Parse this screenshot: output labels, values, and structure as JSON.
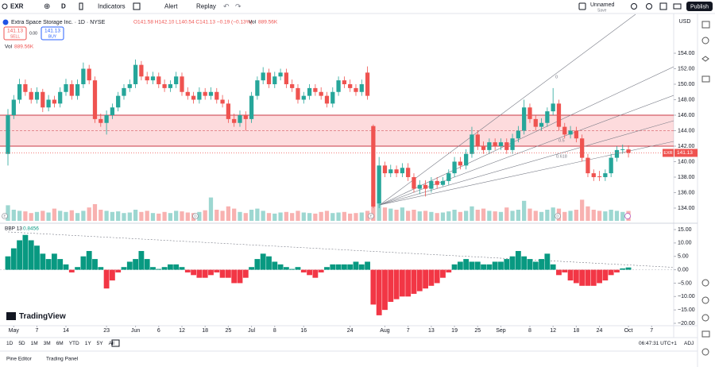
{
  "toolbar": {
    "symbol": "EXR",
    "interval": "D",
    "indicators": "Indicators",
    "alert": "Alert",
    "replay": "Replay",
    "layout_name": "Unnamed",
    "save": "Save",
    "publish": "Publish"
  },
  "legend": {
    "title": "Extra Space Storage Inc. · 1D · NYSE",
    "ohlc": "O141.58 H142.10 L140.54 C141.13 −0.19 (−0.13%)",
    "sell_price": "141.13",
    "sell": "SELL",
    "spread": "0.00",
    "buy_price": "141.13",
    "buy": "BUY"
  },
  "chart_data": {
    "type": "candlestick",
    "symbol_label": "EXR",
    "currency": "USD",
    "up_color": "#26a69a",
    "down_color": "#ef5350",
    "xlim": [
      -1.37,
      114.8
    ],
    "ylim": [
      132.15,
      159.03
    ],
    "yticks": [
      {
        "value": 154,
        "label": "154.00"
      },
      {
        "value": 152,
        "label": "152.00"
      },
      {
        "value": 150,
        "label": "150.00"
      },
      {
        "value": 148,
        "label": "148.00"
      },
      {
        "value": 146,
        "label": "146.00"
      },
      {
        "value": 144,
        "label": "144.00"
      },
      {
        "value": 142,
        "label": "142.00"
      },
      {
        "value": 140,
        "label": "140.00"
      },
      {
        "value": 138,
        "label": "138.00"
      },
      {
        "value": 136,
        "label": "136.00"
      },
      {
        "value": 134,
        "label": "134.00"
      }
    ],
    "xticks": [
      {
        "value": 1,
        "label": "May"
      },
      {
        "value": 5,
        "label": "7"
      },
      {
        "value": 10,
        "label": "14"
      },
      {
        "value": 17,
        "label": "23"
      },
      {
        "value": 22,
        "label": "Jun"
      },
      {
        "value": 26,
        "label": "6"
      },
      {
        "value": 30,
        "label": "12"
      },
      {
        "value": 34,
        "label": "18"
      },
      {
        "value": 38,
        "label": "25"
      },
      {
        "value": 42,
        "label": "Jul"
      },
      {
        "value": 46,
        "label": "8"
      },
      {
        "value": 51,
        "label": "16"
      },
      {
        "value": 59,
        "label": "24"
      },
      {
        "value": 65,
        "label": "Aug"
      },
      {
        "value": 69,
        "label": "7"
      },
      {
        "value": 73,
        "label": "13"
      },
      {
        "value": 77,
        "label": "19"
      },
      {
        "value": 81,
        "label": "25"
      },
      {
        "value": 85,
        "label": "Sep"
      },
      {
        "value": 90,
        "label": "8"
      },
      {
        "value": 94,
        "label": "12"
      },
      {
        "value": 98,
        "label": "18"
      },
      {
        "value": 102,
        "label": "24"
      },
      {
        "value": 107,
        "label": "Oct"
      },
      {
        "value": 111,
        "label": "7"
      }
    ],
    "open": [
      141,
      146,
      148,
      150,
      149,
      148,
      149,
      147,
      148,
      147.5,
      149,
      150,
      148.5,
      150,
      152,
      150.5,
      145.5,
      145,
      146,
      147,
      148.5,
      149.5,
      150,
      152.5,
      151,
      150.5,
      151,
      150,
      149.5,
      150,
      151,
      149,
      148.5,
      148,
      149,
      148.5,
      149,
      148,
      147.5,
      145.5,
      145,
      146,
      145.5,
      148.5,
      150.5,
      151.5,
      150,
      151,
      151.5,
      150,
      149.5,
      148,
      148.5,
      149.5,
      149,
      148.5,
      147.5,
      149,
      150.5,
      150,
      149.5,
      149,
      151.5,
      144.6,
      134.6,
      139.5,
      138.5,
      139,
      138.5,
      139.2,
      138,
      136.5,
      137,
      136.5,
      137.5,
      137,
      137.5,
      138.5,
      140,
      139.5,
      141,
      143.5,
      142,
      141.5,
      142.5,
      142,
      142.5,
      141.5,
      143,
      144,
      147,
      145.5,
      144.5,
      145,
      146.5,
      147.5,
      144.5,
      143.5,
      144,
      143,
      140.5,
      138.5,
      138.1,
      138,
      138.5,
      140.5,
      141.5,
      141.58
    ],
    "high": [
      146.8,
      148.6,
      150.7,
      150.6,
      149.5,
      149.6,
      149.4,
      148.6,
      148.5,
      149.6,
      150.7,
      150.5,
      150.6,
      152.8,
      152.5,
      151,
      146.2,
      146.6,
      147.5,
      149,
      150,
      150.6,
      153.2,
      153,
      151.6,
      151.6,
      151.5,
      150.6,
      150.5,
      151.6,
      151.5,
      149.6,
      149,
      149.6,
      149.5,
      149.6,
      149.5,
      148.6,
      148,
      146.2,
      146.6,
      146.5,
      149,
      151,
      152.2,
      152,
      151.6,
      152,
      152,
      150.6,
      150,
      149,
      150,
      150,
      149.6,
      149,
      149.6,
      151,
      151,
      150.6,
      150,
      150.6,
      152.3,
      144.8,
      140.6,
      140,
      139.6,
      139.5,
      139.8,
      139.8,
      138.5,
      137.6,
      137.6,
      138,
      138,
      138,
      139,
      140.6,
      140.6,
      141.6,
      144.5,
      144,
      142.6,
      143,
      143,
      143,
      143,
      143.6,
      144.6,
      148,
      147.5,
      146,
      145.6,
      147,
      149.5,
      148,
      145,
      144.6,
      144.5,
      143.5,
      141,
      139,
      138.8,
      139,
      141,
      142,
      142.2,
      142.1
    ],
    "low": [
      139.5,
      145.5,
      147.5,
      148.5,
      147.5,
      147.5,
      146.4,
      146.5,
      147,
      147,
      148.5,
      148,
      148,
      149.5,
      150,
      145,
      144.5,
      143.5,
      145.5,
      146.5,
      148,
      149,
      149.5,
      150.5,
      150,
      150,
      149.5,
      149,
      149,
      149.5,
      148.5,
      148,
      147.5,
      147.5,
      148,
      148,
      147.5,
      147,
      145,
      144.5,
      144.5,
      144,
      145,
      148,
      150,
      149.5,
      149.5,
      150.5,
      149.5,
      149,
      147.5,
      147.5,
      148,
      148.5,
      148,
      147,
      147,
      148.5,
      149.5,
      149,
      148.5,
      148.5,
      148,
      134,
      134,
      138,
      138,
      138,
      138,
      137.5,
      136,
      135.8,
      135.5,
      136,
      136.5,
      136.8,
      137,
      138,
      139,
      139,
      140.5,
      141.5,
      141,
      141,
      141.5,
      141.5,
      141,
      141,
      142.5,
      143.5,
      145,
      144,
      144,
      144.5,
      146,
      144,
      143,
      143,
      142.5,
      140,
      138,
      137.5,
      137.5,
      137.5,
      138,
      140,
      141,
      140.54
    ],
    "close": [
      146,
      148,
      150,
      149,
      148,
      149,
      147,
      148,
      147.5,
      149,
      150,
      148.5,
      150,
      152,
      150.5,
      145.5,
      145,
      146,
      147,
      148.5,
      149.5,
      150,
      152.5,
      151,
      150.5,
      151,
      150,
      149.5,
      150,
      151,
      149,
      148.5,
      148,
      149,
      148.5,
      149,
      148,
      147.5,
      145.5,
      145,
      146,
      145.5,
      148.5,
      150.5,
      151.5,
      150,
      151,
      151.5,
      150,
      149.5,
      148,
      148.5,
      149.5,
      149,
      148.5,
      147.5,
      149,
      150.5,
      150,
      149.5,
      149,
      150,
      148.5,
      134.2,
      139.5,
      138.5,
      139,
      138.5,
      139.2,
      138,
      136.5,
      137,
      136.5,
      137.5,
      137,
      137.5,
      138.5,
      140,
      139.5,
      141,
      143.5,
      142,
      141.5,
      142.5,
      142,
      142.5,
      141.5,
      143,
      144,
      147,
      145.5,
      144.5,
      145,
      146.5,
      147.5,
      144.5,
      143.5,
      144,
      143,
      140.5,
      138.5,
      138,
      138,
      138.5,
      140.5,
      141.5,
      141.6,
      141.13
    ],
    "zone": {
      "low": 142,
      "mid": 144,
      "high": 146,
      "color": "#f23645"
    },
    "annotations": [
      "0",
      "0.5",
      "0.618"
    ],
    "events": [
      "E",
      "D",
      "E",
      "D"
    ],
    "volume": {
      "name": "Vol",
      "value_label": "889.56K",
      "lim": [
        0,
        6000000
      ],
      "values": [
        1400000,
        1000000,
        900000,
        850000,
        700000,
        800000,
        900000,
        750000,
        1100000,
        900000,
        800000,
        950000,
        700000,
        900000,
        1200000,
        1500000,
        1000000,
        900000,
        800000,
        850000,
        700000,
        750000,
        1000000,
        800000,
        900000,
        700000,
        650000,
        800000,
        700000,
        900000,
        850000,
        750000,
        700000,
        800000,
        950000,
        2100000,
        1000000,
        900000,
        1300000,
        1100000,
        800000,
        700000,
        1000000,
        1100000,
        900000,
        700000,
        650000,
        750000,
        800000,
        700000,
        900000,
        750000,
        700000,
        650000,
        800000,
        900000,
        700000,
        750000,
        800000,
        650000,
        700000,
        750000,
        900000,
        2300000,
        1700000,
        1200000,
        1100000,
        1000000,
        1200000,
        900000,
        1000000,
        850000,
        900000,
        800000,
        700000,
        750000,
        850000,
        1000000,
        800000,
        900000,
        1300000,
        1000000,
        1100000,
        900000,
        850000,
        800000,
        1200000,
        900000,
        1000000,
        1800000,
        1100000,
        900000,
        800000,
        1000000,
        1200000,
        1100000,
        800000,
        900000,
        1000000,
        1900000,
        1300000,
        1000000,
        900000,
        850000,
        1000000,
        900000,
        800000,
        889560
      ]
    },
    "bbp": {
      "name": "BBP 13",
      "up_color": "#089981",
      "down_color": "#f23645",
      "ylim": [
        -20.89,
        16.78
      ],
      "yticks": [
        {
          "value": 15,
          "label": "15.00"
        },
        {
          "value": 10,
          "label": "10.00"
        },
        {
          "value": 5,
          "label": "5.00"
        },
        {
          "value": 0,
          "label": "0.00"
        },
        {
          "value": -5,
          "label": "−5.00"
        },
        {
          "value": -10,
          "label": "−10.00"
        },
        {
          "value": -15,
          "label": "−15.00"
        },
        {
          "value": -20,
          "label": "−20.00"
        }
      ],
      "values": [
        5,
        8,
        11,
        13,
        11,
        9,
        6,
        4,
        6,
        4,
        2,
        -1,
        1,
        5,
        7,
        4,
        1,
        -7,
        -4,
        -1,
        1,
        3,
        4,
        7,
        4,
        1,
        0.3,
        1,
        2,
        2,
        1,
        -1,
        -2,
        -3,
        -3,
        -2,
        -1,
        -3,
        -3,
        -5,
        -5,
        -3,
        1,
        4,
        6,
        5,
        3,
        2,
        1,
        0.3,
        1,
        -1,
        -2,
        -3,
        -1,
        1,
        2,
        2,
        2,
        2,
        3,
        2,
        3,
        -13,
        -17,
        -15,
        -12,
        -11,
        -10,
        -10,
        -9,
        -8,
        -7,
        -6,
        -5,
        -3,
        -1,
        2,
        3,
        4,
        3,
        3,
        2,
        2,
        3,
        3,
        4,
        5,
        7,
        5,
        4,
        3,
        4,
        6,
        2,
        -2,
        -1,
        -4,
        -5,
        -6,
        -6,
        -6,
        -5,
        -4,
        -2,
        -1,
        0.5,
        0.8456
      ]
    }
  },
  "brand": "TradingView",
  "bottom": {
    "ranges": [
      "1D",
      "5D",
      "1M",
      "3M",
      "6M",
      "YTD",
      "1Y",
      "5Y",
      "All"
    ],
    "clock": "06:47:31 UTC+1",
    "adj": "ADJ",
    "tabs": [
      "Pine Editor",
      "Trading Panel"
    ]
  }
}
